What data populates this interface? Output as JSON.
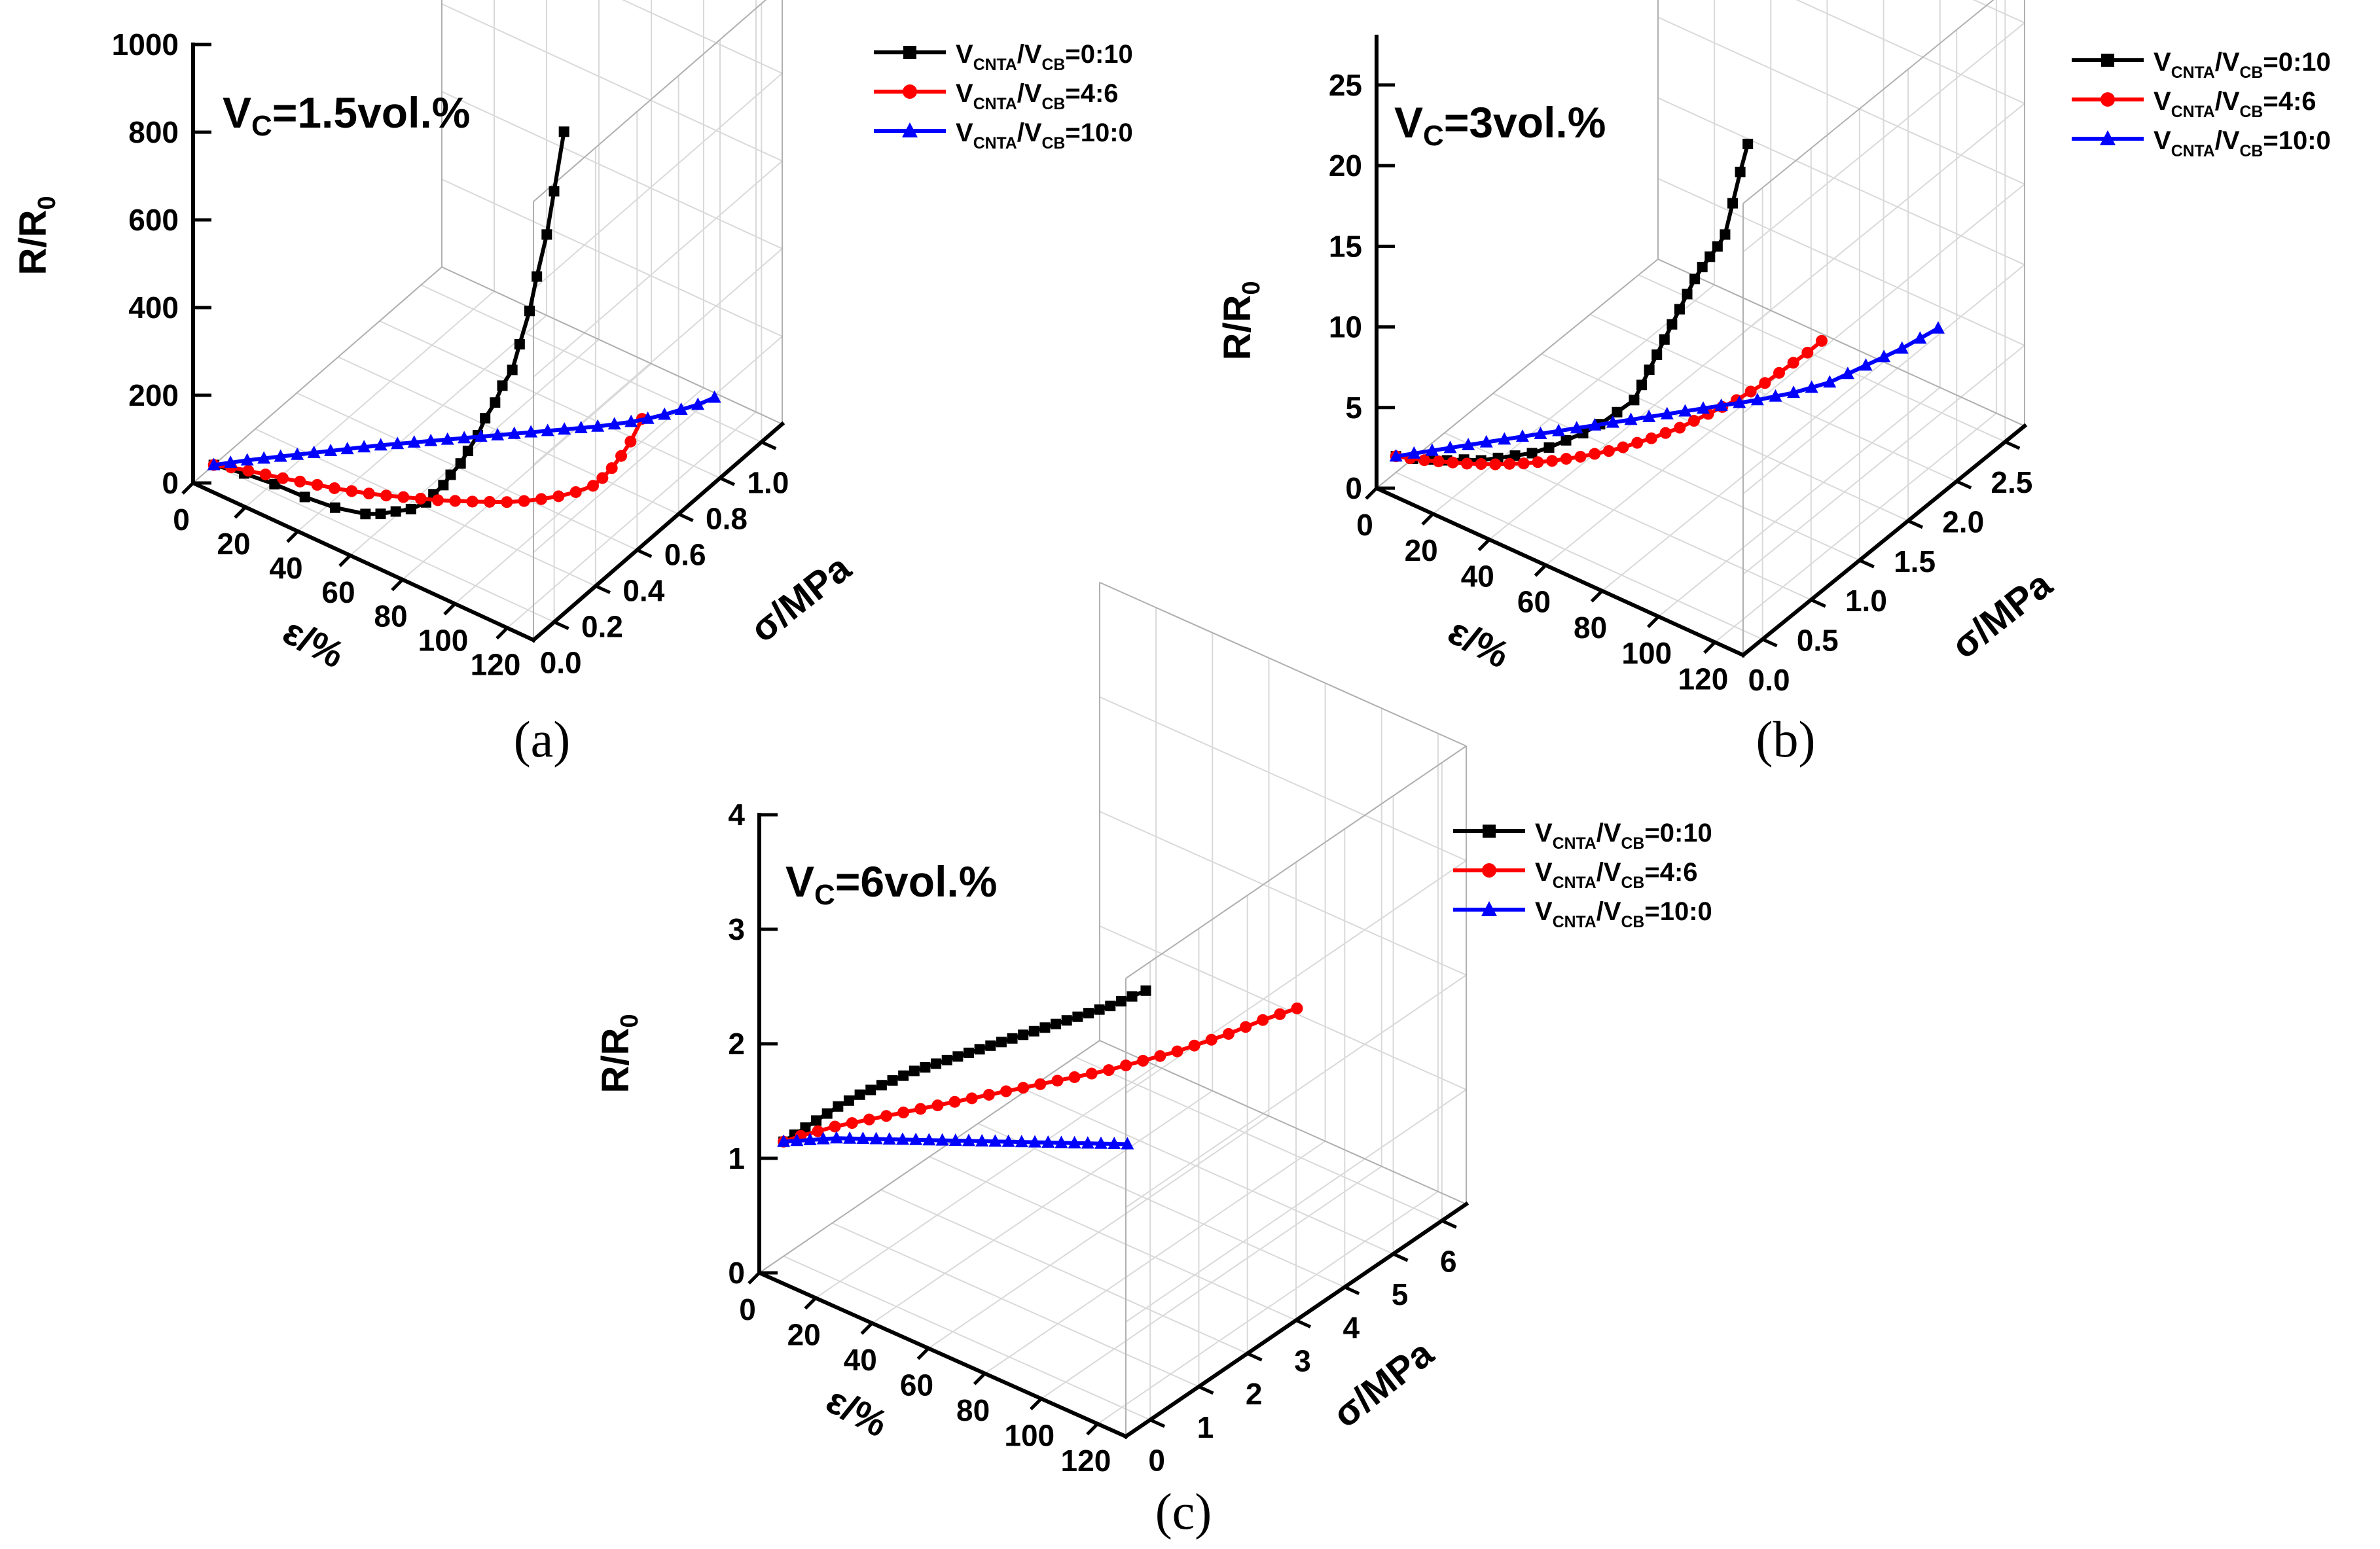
{
  "chart_data": [
    {
      "type": "line",
      "panel_label": "(a)",
      "annotation": "1.5vol.%",
      "zlabel": "R/R0",
      "xlabel": "ε/%",
      "ylabel": "σ/MPa",
      "zlim": [
        0,
        1000
      ],
      "z_ticks": [
        "0",
        "200",
        "400",
        "600",
        "800",
        "1000"
      ],
      "xlim": [
        0,
        130
      ],
      "x_ticks": [
        "0",
        "20",
        "40",
        "60",
        "80",
        "100",
        "120"
      ],
      "ylim": [
        -0.1,
        1.1
      ],
      "y_ticks": [
        "0.0",
        "0.2",
        "0.4",
        "0.6",
        "0.8",
        "1.0"
      ],
      "legend_position": "top-right",
      "series": [
        {
          "name": "VCNTA/VCB=0:10",
          "ratio": "0:10",
          "color": "#000000",
          "marker": "square",
          "x": [
            0,
            10,
            20,
            30,
            40,
            50,
            55,
            60,
            65,
            70,
            72,
            75,
            77,
            80,
            82,
            85,
            87,
            90,
            92,
            95,
            97,
            100,
            102,
            105,
            107,
            110
          ],
          "y": [
            0,
            0.02,
            0.04,
            0.06,
            0.08,
            0.1,
            0.11,
            0.12,
            0.13,
            0.14,
            0.15,
            0.16,
            0.17,
            0.18,
            0.19,
            0.2,
            0.21,
            0.22,
            0.23,
            0.24,
            0.25,
            0.26,
            0.27,
            0.28,
            0.29,
            0.3
          ],
          "z": [
            0,
            0,
            -5,
            -15,
            -20,
            -15,
            -5,
            10,
            25,
            50,
            70,
            95,
            120,
            150,
            180,
            220,
            260,
            300,
            340,
            380,
            440,
            520,
            600,
            700,
            800,
            940
          ]
        },
        {
          "name": "VCNTA/VCB=4:6",
          "ratio": "4:6",
          "color": "#ff0000",
          "marker": "circle",
          "x": [
            0,
            5,
            10,
            15,
            20,
            25,
            30,
            35,
            40,
            45,
            50,
            55,
            60,
            65,
            70,
            75,
            80,
            85,
            90,
            95,
            100,
            105,
            110,
            112,
            114,
            116,
            118,
            120
          ],
          "y": [
            0,
            0.02,
            0.04,
            0.06,
            0.08,
            0.1,
            0.12,
            0.14,
            0.16,
            0.18,
            0.2,
            0.22,
            0.24,
            0.26,
            0.28,
            0.3,
            0.32,
            0.34,
            0.36,
            0.38,
            0.4,
            0.42,
            0.44,
            0.46,
            0.48,
            0.5,
            0.52,
            0.55
          ],
          "z": [
            0,
            0,
            -2,
            -5,
            -8,
            -10,
            -12,
            -14,
            -15,
            -15,
            -14,
            -12,
            -10,
            -8,
            -4,
            0,
            5,
            10,
            18,
            28,
            40,
            55,
            75,
            90,
            110,
            135,
            165,
            210
          ]
        },
        {
          "name": "VCNTA/VCB=10:0",
          "ratio": "10:0",
          "color": "#0000ff",
          "marker": "triangle",
          "x": [
            0,
            4,
            8,
            12,
            16,
            20,
            24,
            28,
            32,
            36,
            40,
            44,
            48,
            52,
            56,
            60,
            64,
            68,
            72,
            76,
            80,
            84,
            88,
            92,
            96,
            100,
            104,
            108,
            112,
            116,
            120
          ],
          "y": [
            0,
            0.03,
            0.06,
            0.09,
            0.12,
            0.15,
            0.18,
            0.21,
            0.24,
            0.27,
            0.3,
            0.33,
            0.36,
            0.39,
            0.42,
            0.45,
            0.48,
            0.51,
            0.54,
            0.57,
            0.6,
            0.63,
            0.66,
            0.69,
            0.72,
            0.75,
            0.78,
            0.81,
            0.84,
            0.87,
            0.9
          ],
          "z": [
            0,
            4,
            8,
            11,
            14,
            17,
            20,
            23,
            26,
            29,
            32,
            34,
            36,
            38,
            40,
            42,
            44,
            46,
            48,
            50,
            52,
            54,
            56,
            58,
            62,
            66,
            72,
            80,
            90,
            100,
            115
          ]
        }
      ]
    },
    {
      "type": "line",
      "panel_label": "(b)",
      "annotation": "3vol.%",
      "zlabel": "R/R0",
      "xlabel": "ε/%",
      "ylabel": "σ/MPa",
      "zlim": [
        0,
        28
      ],
      "z_ticks": [
        "0",
        "5",
        "10",
        "15",
        "20",
        "25"
      ],
      "xlim": [
        0,
        130
      ],
      "x_ticks": [
        "0",
        "20",
        "40",
        "60",
        "80",
        "100",
        "120"
      ],
      "ylim": [
        -0.2,
        2.7
      ],
      "y_ticks": [
        "0.0",
        "0.5",
        "1.0",
        "1.5",
        "2.0",
        "2.5"
      ],
      "legend_position": "top-right",
      "series": [
        {
          "name": "VCNTA/VCB=0:10",
          "ratio": "0:10",
          "color": "#000000",
          "marker": "square",
          "x": [
            0,
            5,
            10,
            15,
            20,
            25,
            30,
            35,
            40,
            45,
            50,
            55,
            60,
            65,
            70,
            72,
            74,
            76,
            78,
            80,
            82,
            84,
            86,
            88,
            90,
            92,
            94,
            96,
            98,
            100
          ],
          "y": [
            0,
            0.03,
            0.06,
            0.09,
            0.12,
            0.15,
            0.18,
            0.21,
            0.24,
            0.27,
            0.3,
            0.33,
            0.36,
            0.39,
            0.42,
            0.44,
            0.46,
            0.48,
            0.5,
            0.52,
            0.54,
            0.56,
            0.58,
            0.6,
            0.62,
            0.64,
            0.66,
            0.68,
            0.7,
            0.72
          ],
          "z": [
            1,
            1.1,
            1.3,
            1.5,
            1.8,
            2,
            2.4,
            2.8,
            3.2,
            3.8,
            4.5,
            5.2,
            6,
            7,
            8,
            9,
            10,
            11,
            12,
            13,
            14,
            15,
            16,
            16.8,
            17.5,
            18.2,
            19,
            21,
            23,
            24.8
          ]
        },
        {
          "name": "VCNTA/VCB=4:6",
          "ratio": "4:6",
          "color": "#ff0000",
          "marker": "circle",
          "x": [
            0,
            4,
            8,
            12,
            16,
            20,
            24,
            28,
            32,
            36,
            40,
            44,
            48,
            52,
            56,
            60,
            64,
            68,
            72,
            76,
            80,
            84,
            88,
            92,
            96,
            100,
            104,
            108,
            112,
            116,
            120
          ],
          "y": [
            0,
            0.03,
            0.06,
            0.09,
            0.12,
            0.15,
            0.18,
            0.21,
            0.24,
            0.27,
            0.3,
            0.33,
            0.36,
            0.39,
            0.42,
            0.45,
            0.48,
            0.51,
            0.54,
            0.57,
            0.6,
            0.63,
            0.66,
            0.69,
            0.72,
            0.75,
            0.78,
            0.81,
            0.84,
            0.87,
            0.9
          ],
          "z": [
            1,
            1.05,
            1.1,
            1.2,
            1.3,
            1.4,
            1.55,
            1.7,
            1.9,
            2.1,
            2.35,
            2.6,
            2.9,
            3.2,
            3.55,
            3.9,
            4.3,
            4.75,
            5.2,
            5.7,
            6.2,
            6.8,
            7.4,
            8,
            8.6,
            9.3,
            10,
            10.8,
            11.6,
            12.4,
            13.3
          ]
        },
        {
          "name": "VCNTA/VCB=10:0",
          "ratio": "10:0",
          "color": "#0000ff",
          "marker": "triangle",
          "x": [
            0,
            4,
            8,
            12,
            16,
            20,
            24,
            28,
            32,
            36,
            40,
            44,
            48,
            52,
            56,
            60,
            64,
            68,
            72,
            76,
            80,
            84,
            88,
            92,
            96,
            100,
            104,
            108,
            112,
            116,
            120
          ],
          "y": [
            0,
            0.07,
            0.14,
            0.21,
            0.28,
            0.35,
            0.42,
            0.49,
            0.56,
            0.63,
            0.7,
            0.77,
            0.84,
            0.91,
            0.98,
            1.05,
            1.12,
            1.19,
            1.26,
            1.33,
            1.4,
            1.47,
            1.54,
            1.61,
            1.68,
            1.75,
            1.82,
            1.89,
            1.96,
            2.03,
            2.1
          ],
          "z": [
            1,
            1.15,
            1.3,
            1.45,
            1.6,
            1.75,
            1.9,
            2.05,
            2.2,
            2.35,
            2.5,
            2.65,
            2.8,
            2.95,
            3.1,
            3.25,
            3.4,
            3.55,
            3.7,
            3.85,
            4,
            4.2,
            4.4,
            4.7,
            5,
            5.5,
            6,
            6.5,
            7,
            7.6,
            8.2
          ]
        }
      ]
    },
    {
      "type": "line",
      "panel_label": "(c)",
      "annotation": "6vol.%",
      "zlabel": "R/R0",
      "xlabel": "ε/%",
      "ylabel": "σ/MPa",
      "zlim": [
        0,
        4
      ],
      "z_ticks": [
        "0",
        "1",
        "2",
        "3",
        "4"
      ],
      "xlim": [
        0,
        130
      ],
      "x_ticks": [
        "0",
        "20",
        "40",
        "60",
        "80",
        "100",
        "120"
      ],
      "ylim": [
        -0.5,
        6.5
      ],
      "y_ticks": [
        "0",
        "1",
        "2",
        "3",
        "4",
        "5",
        "6"
      ],
      "legend_position": "top-right",
      "series": [
        {
          "name": "VCNTA/VCB=0:10",
          "ratio": "0:10",
          "color": "#000000",
          "marker": "square",
          "x": [
            0,
            3,
            6,
            9,
            12,
            15,
            18,
            21,
            24,
            27,
            30,
            33,
            36,
            39,
            42,
            45,
            48,
            51,
            54,
            57,
            60,
            63,
            66,
            69,
            72,
            75,
            78,
            81,
            84,
            87,
            90,
            93,
            96,
            100
          ],
          "y": [
            0,
            0.05,
            0.1,
            0.15,
            0.2,
            0.25,
            0.3,
            0.35,
            0.4,
            0.45,
            0.5,
            0.55,
            0.6,
            0.65,
            0.7,
            0.75,
            0.8,
            0.85,
            0.9,
            0.95,
            1,
            1.05,
            1.1,
            1.15,
            1.2,
            1.25,
            1.3,
            1.35,
            1.4,
            1.45,
            1.5,
            1.55,
            1.6,
            1.65
          ],
          "z": [
            1,
            1.08,
            1.16,
            1.24,
            1.32,
            1.4,
            1.47,
            1.54,
            1.6,
            1.66,
            1.72,
            1.78,
            1.84,
            1.89,
            1.94,
            1.99,
            2.04,
            2.09,
            2.14,
            2.19,
            2.24,
            2.29,
            2.34,
            2.39,
            2.44,
            2.49,
            2.54,
            2.59,
            2.64,
            2.69,
            2.74,
            2.8,
            2.86,
            2.94
          ]
        },
        {
          "name": "VCNTA/VCB=4:6",
          "ratio": "4:6",
          "color": "#ff0000",
          "marker": "circle",
          "x": [
            0,
            4,
            8,
            12,
            16,
            20,
            24,
            28,
            32,
            36,
            40,
            44,
            48,
            52,
            56,
            60,
            64,
            68,
            72,
            76,
            80,
            84,
            88,
            92,
            96,
            100,
            104,
            108,
            112,
            116,
            120
          ],
          "y": [
            0,
            0.12,
            0.24,
            0.36,
            0.48,
            0.6,
            0.72,
            0.84,
            0.96,
            1.08,
            1.2,
            1.32,
            1.44,
            1.56,
            1.68,
            1.8,
            1.92,
            2.04,
            2.16,
            2.28,
            2.4,
            2.52,
            2.64,
            2.76,
            2.88,
            3,
            3.12,
            3.24,
            3.36,
            3.48,
            3.6
          ],
          "z": [
            1,
            1.06,
            1.11,
            1.16,
            1.2,
            1.24,
            1.28,
            1.32,
            1.36,
            1.4,
            1.44,
            1.48,
            1.52,
            1.56,
            1.6,
            1.64,
            1.68,
            1.72,
            1.76,
            1.8,
            1.85,
            1.9,
            1.95,
            2,
            2.06,
            2.12,
            2.18,
            2.25,
            2.32,
            2.38,
            2.44
          ]
        },
        {
          "name": "VCNTA/VCB=10:0",
          "ratio": "10:0",
          "color": "#0000ff",
          "marker": "triangle",
          "x": [
            0,
            4,
            8,
            12,
            16,
            20,
            24,
            28,
            32,
            36,
            40,
            44,
            48,
            52,
            56,
            60,
            64,
            68,
            72,
            76,
            80,
            84,
            88,
            92,
            96,
            100,
            104
          ],
          "y": [
            0,
            0.04,
            0.08,
            0.12,
            0.16,
            0.2,
            0.24,
            0.28,
            0.32,
            0.36,
            0.4,
            0.44,
            0.48,
            0.52,
            0.56,
            0.6,
            0.64,
            0.68,
            0.72,
            0.76,
            0.8,
            0.84,
            0.88,
            0.92,
            0.96,
            1,
            1.04
          ],
          "z": [
            1,
            1.04,
            1.08,
            1.12,
            1.16,
            1.19,
            1.22,
            1.25,
            1.28,
            1.31,
            1.34,
            1.37,
            1.4,
            1.43,
            1.46,
            1.49,
            1.52,
            1.55,
            1.58,
            1.61,
            1.64,
            1.67,
            1.7,
            1.73,
            1.76,
            1.79,
            1.82
          ]
        }
      ]
    }
  ]
}
